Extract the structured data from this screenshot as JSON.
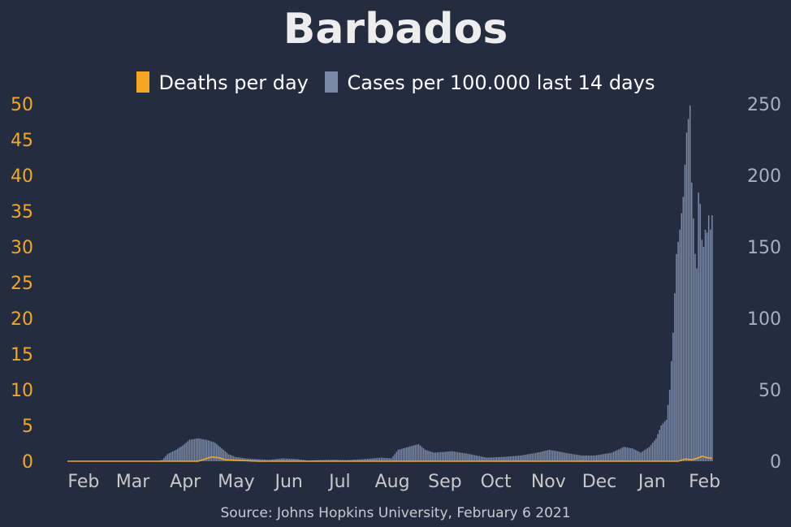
{
  "title": "Barbados",
  "source": "Source: Johns Hopkins University, February 6 2021",
  "colors": {
    "background": "#232d3f",
    "deaths": "#f5a623",
    "cases": "#7a8aa6",
    "left_axis_text": "#f5a623",
    "right_axis_text": "#a5b1c4",
    "month_text": "#c8c8c8"
  },
  "chart_data": {
    "type": "bar",
    "title": "Barbados",
    "x_tick_labels": [
      "Feb",
      "Mar",
      "Apr",
      "May",
      "Jun",
      "Jul",
      "Aug",
      "Sep",
      "Oct",
      "Nov",
      "Dec",
      "Jan",
      "Feb"
    ],
    "y_left": {
      "ticks": [
        0,
        5,
        10,
        15,
        20,
        25,
        30,
        35,
        40,
        45,
        50
      ],
      "lim": [
        0,
        50
      ]
    },
    "y_right": {
      "ticks": [
        0,
        50,
        100,
        150,
        200,
        250
      ],
      "lim": [
        0,
        250
      ]
    },
    "grid": false,
    "legend_position": "top-center",
    "series": [
      {
        "name": "Deaths per day",
        "type": "line",
        "axis": "left",
        "color": "#f5a623",
        "points": [
          [
            "2020-01-22",
            0
          ],
          [
            "2020-04-08",
            0
          ],
          [
            "2020-04-12",
            0.3
          ],
          [
            "2020-04-16",
            0.6
          ],
          [
            "2020-04-20",
            0.5
          ],
          [
            "2020-04-24",
            0.2
          ],
          [
            "2020-05-04",
            0.1
          ],
          [
            "2020-05-14",
            0
          ],
          [
            "2021-01-16",
            0
          ],
          [
            "2021-01-20",
            0.3
          ],
          [
            "2021-01-24",
            0.2
          ],
          [
            "2021-01-27",
            0.4
          ],
          [
            "2021-01-30",
            0.7
          ],
          [
            "2021-02-02",
            0.5
          ],
          [
            "2021-02-05",
            0.4
          ]
        ]
      },
      {
        "name": "Cases per 100.000 last 14 days",
        "type": "bar",
        "axis": "right",
        "color": "#7a8aa6",
        "points": [
          [
            "2020-01-22",
            0
          ],
          [
            "2020-03-15",
            0
          ],
          [
            "2020-03-18",
            1
          ],
          [
            "2020-03-21",
            5
          ],
          [
            "2020-03-26",
            8
          ],
          [
            "2020-03-30",
            11
          ],
          [
            "2020-04-03",
            15
          ],
          [
            "2020-04-08",
            16
          ],
          [
            "2020-04-13",
            15
          ],
          [
            "2020-04-18",
            13
          ],
          [
            "2020-04-22",
            9
          ],
          [
            "2020-04-26",
            5
          ],
          [
            "2020-04-30",
            3
          ],
          [
            "2020-05-06",
            2
          ],
          [
            "2020-05-12",
            1.5
          ],
          [
            "2020-05-20",
            1
          ],
          [
            "2020-05-28",
            2
          ],
          [
            "2020-06-05",
            1.5
          ],
          [
            "2020-06-12",
            0.5
          ],
          [
            "2020-06-18",
            0.8
          ],
          [
            "2020-06-26",
            1
          ],
          [
            "2020-07-05",
            0.8
          ],
          [
            "2020-07-15",
            1.5
          ],
          [
            "2020-07-25",
            2.5
          ],
          [
            "2020-07-31",
            2
          ],
          [
            "2020-08-04",
            8
          ],
          [
            "2020-08-10",
            10
          ],
          [
            "2020-08-16",
            12
          ],
          [
            "2020-08-20",
            8
          ],
          [
            "2020-08-25",
            6
          ],
          [
            "2020-09-05",
            7
          ],
          [
            "2020-09-15",
            5
          ],
          [
            "2020-09-25",
            2.5
          ],
          [
            "2020-10-05",
            3
          ],
          [
            "2020-10-15",
            4
          ],
          [
            "2020-10-25",
            6
          ],
          [
            "2020-11-01",
            8
          ],
          [
            "2020-11-10",
            6
          ],
          [
            "2020-11-20",
            4
          ],
          [
            "2020-11-28",
            4
          ],
          [
            "2020-12-08",
            6
          ],
          [
            "2020-12-15",
            10
          ],
          [
            "2020-12-20",
            9
          ],
          [
            "2020-12-25",
            6
          ],
          [
            "2020-12-30",
            10
          ],
          [
            "2021-01-03",
            16
          ],
          [
            "2021-01-06",
            25
          ],
          [
            "2021-01-09",
            29
          ],
          [
            "2021-01-11",
            50
          ],
          [
            "2021-01-13",
            90
          ],
          [
            "2021-01-15",
            145
          ],
          [
            "2021-01-17",
            162
          ],
          [
            "2021-01-19",
            185
          ],
          [
            "2021-01-21",
            230
          ],
          [
            "2021-01-23",
            249
          ],
          [
            "2021-01-24",
            195
          ],
          [
            "2021-01-25",
            170
          ],
          [
            "2021-01-26",
            145
          ],
          [
            "2021-01-27",
            135
          ],
          [
            "2021-01-28",
            188
          ],
          [
            "2021-01-29",
            180
          ],
          [
            "2021-01-30",
            155
          ],
          [
            "2021-01-31",
            150
          ],
          [
            "2021-02-01",
            162
          ],
          [
            "2021-02-02",
            160
          ],
          [
            "2021-02-03",
            172
          ],
          [
            "2021-02-04",
            162
          ],
          [
            "2021-02-05",
            172
          ]
        ]
      }
    ]
  }
}
